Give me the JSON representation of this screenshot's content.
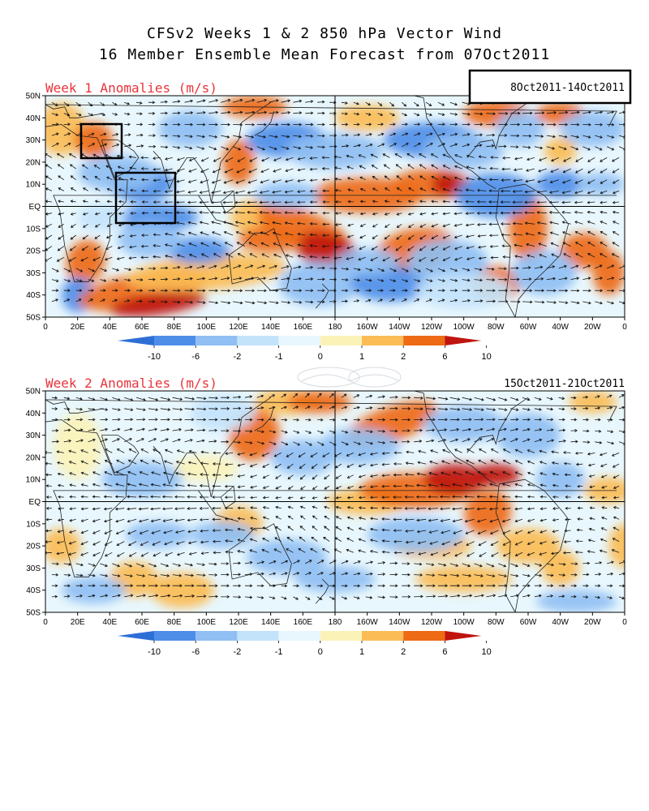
{
  "header": {
    "title_line1": "CFSv2 Weeks 1 & 2 850 hPa Vector Wind",
    "title_line2": "16 Member Ensemble Mean Forecast from 07Oct2011"
  },
  "panels": [
    {
      "title": "Week 1 Anomalies (m/s)",
      "dates": "8Oct2011-14Oct2011"
    },
    {
      "title": "Week 2 Anomalies (m/s)",
      "dates": "15Oct2011-21Oct2011"
    }
  ],
  "axes": {
    "lon_ticks": [
      "0",
      "20E",
      "40E",
      "60E",
      "80E",
      "100E",
      "120E",
      "140E",
      "160E",
      "180",
      "160W",
      "140W",
      "120W",
      "100W",
      "80W",
      "60W",
      "40W",
      "20W",
      "0"
    ],
    "lat_ticks": [
      "50N",
      "40N",
      "30N",
      "20N",
      "10N",
      "EQ",
      "10S",
      "20S",
      "30S",
      "40S",
      "50S"
    ]
  },
  "colorbar": {
    "labels": [
      "-10",
      "-6",
      "-2",
      "-1",
      "0",
      "1",
      "2",
      "6",
      "10"
    ],
    "colors": [
      "#2e6fd6",
      "#4f8ee8",
      "#8fbff3",
      "#c3e3fb",
      "#e8f7fd",
      "#fbf2b8",
      "#fbbc55",
      "#ee6a14",
      "#c0140e"
    ]
  },
  "palette": {
    "frame": "#000000",
    "arrow": "#111111",
    "title_red": "#e8333a"
  }
}
